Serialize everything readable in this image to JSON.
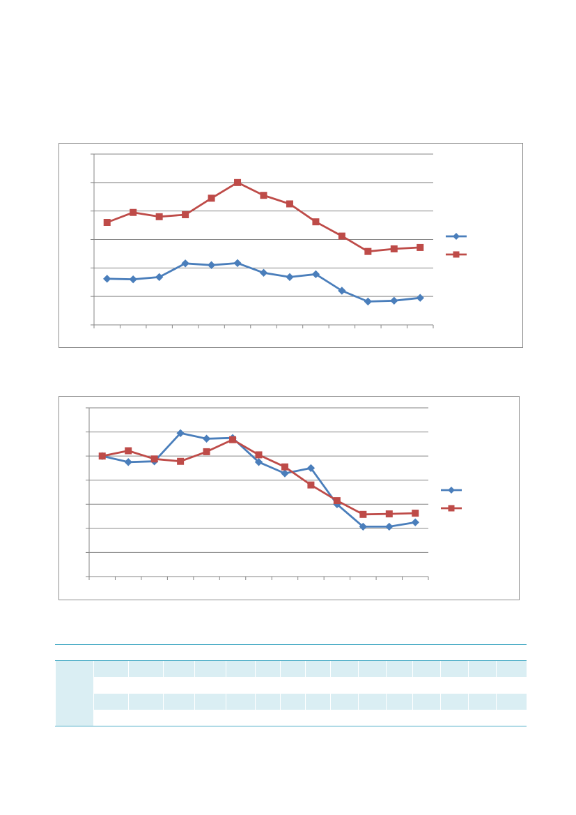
{
  "colors": {
    "series_a": "#4a7ebb",
    "series_b": "#be4b48",
    "gridline": "#868686",
    "table_band": "#daeef3",
    "table_rule": "#4bacc6"
  },
  "chart_data": [
    {
      "type": "line",
      "title": "",
      "xlabel": "",
      "ylabel": "",
      "x": [
        1,
        2,
        3,
        4,
        5,
        6,
        7,
        8,
        9,
        10,
        11,
        12,
        13
      ],
      "ylim": [
        0,
        6
      ],
      "y_gridlines": [
        0,
        1,
        2,
        3,
        4,
        5,
        6
      ],
      "grid": "horizontal",
      "legend": "right",
      "series": [
        {
          "values": [
            1.62,
            1.6,
            1.68,
            2.16,
            2.1,
            2.17,
            1.83,
            1.68,
            1.78,
            1.2,
            0.82,
            0.85,
            0.95
          ],
          "marker": "diamond",
          "color": "#4a7ebb"
        },
        {
          "values": [
            3.6,
            3.95,
            3.8,
            3.87,
            4.45,
            5.0,
            4.55,
            4.25,
            3.62,
            3.12,
            2.58,
            2.67,
            2.72
          ],
          "marker": "square",
          "color": "#be4b48"
        }
      ]
    },
    {
      "type": "line",
      "title": "",
      "xlabel": "",
      "ylabel": "",
      "x": [
        1,
        2,
        3,
        4,
        5,
        6,
        7,
        8,
        9,
        10,
        11,
        12,
        13
      ],
      "ylim": [
        0,
        7
      ],
      "y_gridlines": [
        0,
        1,
        2,
        3,
        4,
        5,
        6,
        7
      ],
      "grid": "horizontal",
      "legend": "right",
      "series": [
        {
          "values": [
            5.0,
            4.75,
            4.78,
            5.95,
            5.72,
            5.75,
            4.75,
            4.28,
            4.5,
            3.0,
            2.07,
            2.07,
            2.25
          ],
          "marker": "diamond",
          "color": "#4a7ebb"
        },
        {
          "values": [
            5.0,
            5.22,
            4.88,
            4.78,
            5.18,
            5.68,
            5.05,
            4.55,
            3.8,
            3.15,
            2.58,
            2.6,
            2.63
          ],
          "marker": "square",
          "color": "#be4b48"
        }
      ]
    }
  ],
  "table": {
    "columns": 16,
    "rows": 4
  }
}
